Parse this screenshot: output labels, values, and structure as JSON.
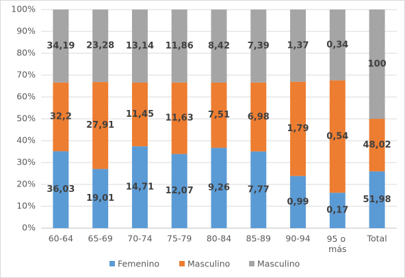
{
  "chart_data": {
    "type": "bar",
    "stacking": "percent",
    "categories": [
      "60-64",
      "65-69",
      "70-74",
      "75-79",
      "80-84",
      "85-89",
      "90-94",
      "95 o más",
      "Total"
    ],
    "series": [
      {
        "name": "Femenino",
        "color": "#5b9bd5",
        "values": [
          36.03,
          19.01,
          14.71,
          12.07,
          9.26,
          7.77,
          0.99,
          0.17,
          51.98
        ],
        "value_labels": [
          "36,03",
          "19,01",
          "14,71",
          "12,07",
          "9,26",
          "7,77",
          "0,99",
          "0,17",
          "51,98"
        ]
      },
      {
        "name": "Masculino",
        "color": "#ed7d31",
        "values": [
          32.2,
          27.91,
          11.45,
          11.63,
          7.51,
          6.98,
          1.79,
          0.54,
          48.02
        ],
        "value_labels": [
          "32,2",
          "27,91",
          "11,45",
          "11,63",
          "7,51",
          "6,98",
          "1,79",
          "0,54",
          "48,02"
        ]
      },
      {
        "name": "Masculino",
        "color": "#a5a5a5",
        "values": [
          34.19,
          23.28,
          13.14,
          11.86,
          8.42,
          7.39,
          1.37,
          0.34,
          100
        ],
        "value_labels": [
          "34,19",
          "23,28",
          "13,14",
          "11,86",
          "8,42",
          "7,39",
          "1,37",
          "0,34",
          "100"
        ]
      }
    ],
    "ylim": [
      0,
      100
    ],
    "yticks": [
      {
        "value": 0,
        "label": "0%"
      },
      {
        "value": 10,
        "label": "10%"
      },
      {
        "value": 20,
        "label": "20%"
      },
      {
        "value": 30,
        "label": "30%"
      },
      {
        "value": 40,
        "label": "40%"
      },
      {
        "value": 50,
        "label": "50%"
      },
      {
        "value": 60,
        "label": "60%"
      },
      {
        "value": 70,
        "label": "70%"
      },
      {
        "value": 80,
        "label": "80%"
      },
      {
        "value": 90,
        "label": "90%"
      },
      {
        "value": 100,
        "label": "100%"
      }
    ],
    "grid": true,
    "legend": "bottom"
  }
}
